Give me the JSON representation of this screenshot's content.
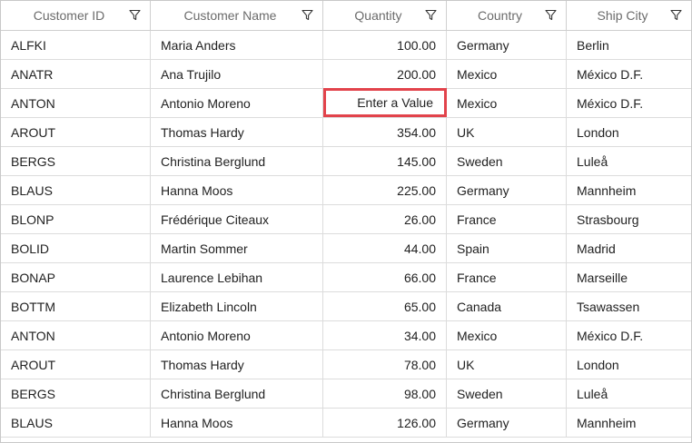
{
  "columns": [
    {
      "label": "Customer ID",
      "filter_icon": "filter-icon"
    },
    {
      "label": "Customer Name",
      "filter_icon": "filter-icon"
    },
    {
      "label": "Quantity",
      "filter_icon": "filter-icon"
    },
    {
      "label": "Country",
      "filter_icon": "filter-icon"
    },
    {
      "label": "Ship City",
      "filter_icon": "filter-icon"
    }
  ],
  "rows": [
    {
      "id": "ALFKI",
      "name": "Maria Anders",
      "qty": "100.00",
      "country": "Germany",
      "city": "Berlin"
    },
    {
      "id": "ANATR",
      "name": "Ana Trujilo",
      "qty": "200.00",
      "country": "Mexico",
      "city": "México D.F."
    },
    {
      "id": "ANTON",
      "name": "Antonio Moreno",
      "qty": "",
      "country": "Mexico",
      "city": "México D.F."
    },
    {
      "id": "AROUT",
      "name": "Thomas Hardy",
      "qty": "354.00",
      "country": "UK",
      "city": "London"
    },
    {
      "id": "BERGS",
      "name": "Christina Berglund",
      "qty": "145.00",
      "country": "Sweden",
      "city": "Luleå"
    },
    {
      "id": "BLAUS",
      "name": "Hanna Moos",
      "qty": "225.00",
      "country": "Germany",
      "city": "Mannheim"
    },
    {
      "id": "BLONP",
      "name": "Frédérique Citeaux",
      "qty": "26.00",
      "country": "France",
      "city": "Strasbourg"
    },
    {
      "id": "BOLID",
      "name": "Martin Sommer",
      "qty": "44.00",
      "country": "Spain",
      "city": "Madrid"
    },
    {
      "id": "BONAP",
      "name": "Laurence Lebihan",
      "qty": "66.00",
      "country": "France",
      "city": "Marseille"
    },
    {
      "id": "BOTTM",
      "name": "Elizabeth Lincoln",
      "qty": "65.00",
      "country": "Canada",
      "city": "Tsawassen"
    },
    {
      "id": "ANTON",
      "name": "Antonio Moreno",
      "qty": "34.00",
      "country": "Mexico",
      "city": "México D.F."
    },
    {
      "id": "AROUT",
      "name": "Thomas Hardy",
      "qty": "78.00",
      "country": "UK",
      "city": "London"
    },
    {
      "id": "BERGS",
      "name": "Christina Berglund",
      "qty": "98.00",
      "country": "Sweden",
      "city": "Luleå"
    },
    {
      "id": "BLAUS",
      "name": "Hanna Moos",
      "qty": "126.00",
      "country": "Germany",
      "city": "Mannheim"
    }
  ],
  "edit_cell": {
    "placeholder": "Enter a Value",
    "border_color": "#e2434b"
  }
}
